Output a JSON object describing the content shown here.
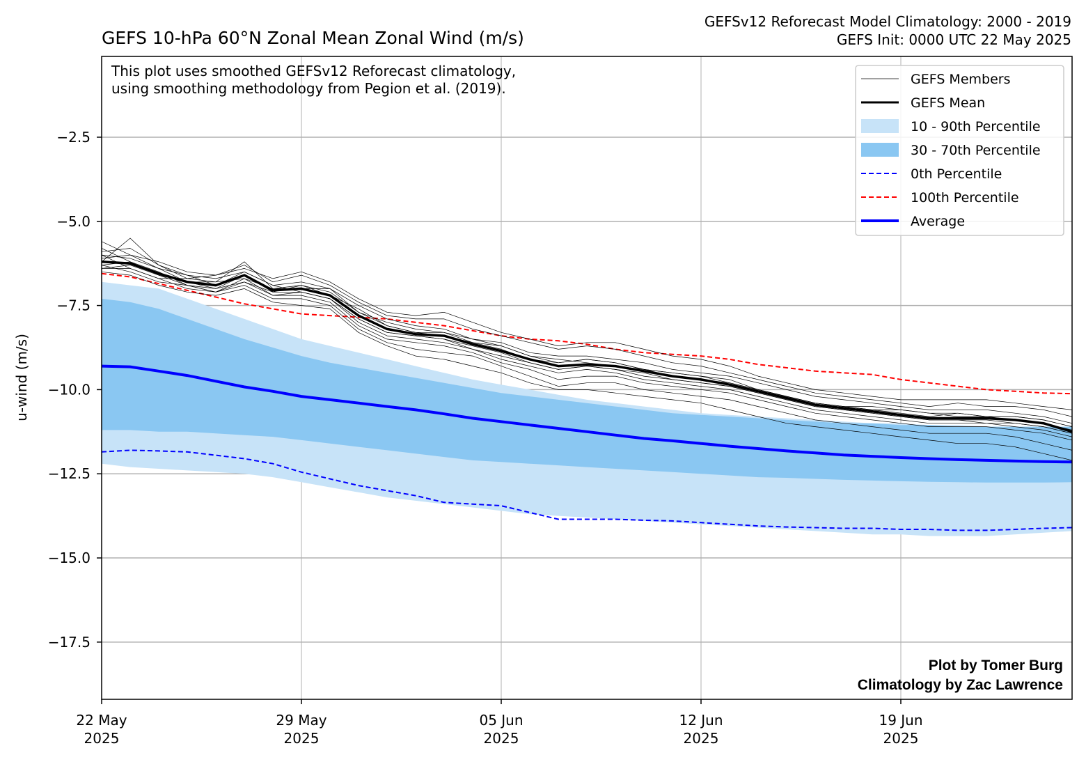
{
  "chart_data": {
    "type": "line",
    "title": "GEFS 10-hPa 60°N Zonal Mean Zonal Wind (m/s)",
    "subtitle_lines": [
      "GEFSv12 Reforecast Model Climatology: 2000 - 2019",
      "GEFS Init: 0000 UTC 22 May 2025"
    ],
    "note_lines": [
      "This plot uses smoothed GEFSv12 Reforecast climatology,",
      "using smoothing methodology from Pegion et al. (2019)."
    ],
    "credit_lines": [
      "Plot by Tomer Burg",
      "Climatology by Zac Lawrence"
    ],
    "xlabel": "",
    "ylabel": "u-wind (m/s)",
    "xlim": [
      0,
      34
    ],
    "ylim": [
      -19.2,
      -0.1
    ],
    "x_unit": "days after 22 May 2025 00 UTC",
    "x_ticks": [
      {
        "x": 0,
        "label_line1": "22 May",
        "label_line2": "2025"
      },
      {
        "x": 7,
        "label_line1": "29 May",
        "label_line2": "2025"
      },
      {
        "x": 14,
        "label_line1": "05 Jun",
        "label_line2": "2025"
      },
      {
        "x": 21,
        "label_line1": "12 Jun",
        "label_line2": "2025"
      },
      {
        "x": 28,
        "label_line1": "19 Jun",
        "label_line2": "2025"
      }
    ],
    "y_ticks": [
      {
        "y": -2.5,
        "label": "−2.5"
      },
      {
        "y": -5.0,
        "label": "−5.0"
      },
      {
        "y": -7.5,
        "label": "−7.5"
      },
      {
        "y": -10.0,
        "label": "−10.0"
      },
      {
        "y": -12.5,
        "label": "−12.5"
      },
      {
        "y": -15.0,
        "label": "−15.0"
      },
      {
        "y": -17.5,
        "label": "−17.5"
      }
    ],
    "grid": true,
    "legend_position": "top-right",
    "legend": [
      {
        "label": "GEFS Members",
        "kind": "line",
        "color": "#000000",
        "width": 0.8
      },
      {
        "label": "GEFS Mean",
        "kind": "line",
        "color": "#000000",
        "width": 3
      },
      {
        "label": "10 - 90th Percentile",
        "kind": "patch",
        "color": "#c7e3f8"
      },
      {
        "label": "30 - 70th Percentile",
        "kind": "patch",
        "color": "#8ac7f2"
      },
      {
        "label": "0th Percentile",
        "kind": "dashed",
        "color": "#0000ff",
        "width": 2
      },
      {
        "label": "100th Percentile",
        "kind": "dashed",
        "color": "#ff0000",
        "width": 2
      },
      {
        "label": "Average",
        "kind": "line",
        "color": "#0000ff",
        "width": 4
      }
    ],
    "colors": {
      "band_10_90": "#c7e3f8",
      "band_30_70": "#8ac7f2",
      "average": "#0000ff",
      "p0": "#0000ff",
      "p100": "#ff0000",
      "members": "#000000",
      "mean": "#000000"
    },
    "x": [
      0,
      1,
      2,
      3,
      4,
      5,
      6,
      7,
      8,
      9,
      10,
      11,
      12,
      13,
      14,
      15,
      16,
      17,
      18,
      19,
      20,
      21,
      22,
      23,
      24,
      25,
      26,
      27,
      28,
      29,
      30,
      31,
      32,
      33,
      34
    ],
    "series": [
      {
        "name": "10 - 90th Percentile",
        "role": "band_outer",
        "upper": [
          -6.8,
          -6.9,
          -7.0,
          -7.3,
          -7.6,
          -7.9,
          -8.2,
          -8.5,
          -8.7,
          -8.9,
          -9.1,
          -9.3,
          -9.5,
          -9.7,
          -9.85,
          -10.0,
          -10.15,
          -10.3,
          -10.4,
          -10.5,
          -10.6,
          -10.7,
          -10.75,
          -10.8,
          -10.85,
          -10.9,
          -10.95,
          -11.0,
          -11.0,
          -11.05,
          -11.05,
          -11.1,
          -11.1,
          -11.1,
          -11.1
        ],
        "lower": [
          -12.2,
          -12.3,
          -12.35,
          -12.4,
          -12.45,
          -12.5,
          -12.6,
          -12.75,
          -12.9,
          -13.05,
          -13.2,
          -13.3,
          -13.4,
          -13.5,
          -13.6,
          -13.7,
          -13.75,
          -13.8,
          -13.85,
          -13.9,
          -13.95,
          -14.0,
          -14.05,
          -14.1,
          -14.15,
          -14.2,
          -14.25,
          -14.3,
          -14.3,
          -14.35,
          -14.35,
          -14.35,
          -14.3,
          -14.25,
          -14.2
        ]
      },
      {
        "name": "30 - 70th Percentile",
        "role": "band_inner",
        "upper": [
          -7.3,
          -7.4,
          -7.6,
          -7.9,
          -8.2,
          -8.5,
          -8.75,
          -9.0,
          -9.2,
          -9.35,
          -9.5,
          -9.65,
          -9.8,
          -9.95,
          -10.1,
          -10.2,
          -10.3,
          -10.4,
          -10.5,
          -10.6,
          -10.7,
          -10.75,
          -10.8,
          -10.85,
          -10.9,
          -10.95,
          -11.0,
          -11.0,
          -11.05,
          -11.05,
          -11.1,
          -11.1,
          -11.1,
          -11.1,
          -11.1
        ],
        "lower": [
          -11.2,
          -11.2,
          -11.25,
          -11.25,
          -11.3,
          -11.35,
          -11.4,
          -11.5,
          -11.6,
          -11.7,
          -11.8,
          -11.9,
          -12.0,
          -12.1,
          -12.15,
          -12.2,
          -12.25,
          -12.3,
          -12.35,
          -12.4,
          -12.45,
          -12.5,
          -12.55,
          -12.6,
          -12.62,
          -12.65,
          -12.68,
          -12.7,
          -12.72,
          -12.74,
          -12.75,
          -12.76,
          -12.76,
          -12.76,
          -12.75
        ]
      },
      {
        "name": "0th Percentile",
        "role": "p0",
        "values": [
          -11.85,
          -11.8,
          -11.82,
          -11.85,
          -11.95,
          -12.05,
          -12.2,
          -12.45,
          -12.65,
          -12.85,
          -13.0,
          -13.15,
          -13.35,
          -13.4,
          -13.45,
          -13.65,
          -13.85,
          -13.85,
          -13.85,
          -13.88,
          -13.9,
          -13.95,
          -14.0,
          -14.05,
          -14.08,
          -14.1,
          -14.12,
          -14.12,
          -14.15,
          -14.15,
          -14.18,
          -14.18,
          -14.15,
          -14.12,
          -14.1
        ]
      },
      {
        "name": "100th Percentile",
        "role": "p100",
        "values": [
          -6.55,
          -6.65,
          -6.85,
          -7.05,
          -7.25,
          -7.45,
          -7.6,
          -7.75,
          -7.8,
          -7.85,
          -7.9,
          -8.0,
          -8.1,
          -8.25,
          -8.4,
          -8.5,
          -8.55,
          -8.65,
          -8.8,
          -8.9,
          -8.95,
          -9.0,
          -9.1,
          -9.25,
          -9.35,
          -9.45,
          -9.5,
          -9.55,
          -9.7,
          -9.8,
          -9.9,
          -10.0,
          -10.05,
          -10.1,
          -10.12
        ]
      },
      {
        "name": "Average",
        "role": "average",
        "values": [
          -9.3,
          -9.32,
          -9.45,
          -9.58,
          -9.75,
          -9.92,
          -10.05,
          -10.2,
          -10.3,
          -10.4,
          -10.5,
          -10.6,
          -10.72,
          -10.85,
          -10.95,
          -11.05,
          -11.15,
          -11.25,
          -11.35,
          -11.45,
          -11.52,
          -11.6,
          -11.68,
          -11.75,
          -11.82,
          -11.88,
          -11.94,
          -11.98,
          -12.02,
          -12.05,
          -12.08,
          -12.1,
          -12.12,
          -12.14,
          -12.15
        ]
      },
      {
        "name": "GEFS Mean",
        "role": "mean",
        "values": [
          -6.2,
          -6.25,
          -6.55,
          -6.8,
          -6.9,
          -6.6,
          -7.05,
          -7.0,
          -7.2,
          -7.8,
          -8.2,
          -8.35,
          -8.4,
          -8.65,
          -8.85,
          -9.1,
          -9.3,
          -9.25,
          -9.3,
          -9.45,
          -9.6,
          -9.7,
          -9.85,
          -10.05,
          -10.25,
          -10.45,
          -10.55,
          -10.65,
          -10.75,
          -10.85,
          -10.85,
          -10.85,
          -10.9,
          -11.0,
          -11.25
        ]
      }
    ],
    "members": [
      {
        "values": [
          -6.0,
          -6.1,
          -6.4,
          -6.6,
          -6.7,
          -6.5,
          -6.9,
          -6.8,
          -7.0,
          -7.5,
          -7.9,
          -8.1,
          -8.2,
          -8.5,
          -8.6,
          -8.9,
          -9.0,
          -9.0,
          -9.1,
          -9.2,
          -9.4,
          -9.5,
          -9.6,
          -9.8,
          -10.0,
          -10.2,
          -10.3,
          -10.4,
          -10.5,
          -10.6,
          -10.6,
          -10.6,
          -10.7,
          -10.8,
          -11.0
        ]
      },
      {
        "values": [
          -6.4,
          -6.4,
          -6.7,
          -7.0,
          -7.1,
          -6.8,
          -7.2,
          -7.2,
          -7.4,
          -8.1,
          -8.5,
          -8.6,
          -8.7,
          -8.9,
          -9.2,
          -9.4,
          -9.7,
          -9.6,
          -9.6,
          -9.8,
          -9.9,
          -10.0,
          -10.1,
          -10.3,
          -10.5,
          -10.7,
          -10.8,
          -10.9,
          -11.0,
          -11.1,
          -11.1,
          -11.1,
          -11.2,
          -11.3,
          -11.5
        ]
      },
      {
        "values": [
          -5.9,
          -5.8,
          -6.3,
          -6.7,
          -6.6,
          -6.3,
          -6.8,
          -6.6,
          -6.9,
          -7.4,
          -7.8,
          -7.9,
          -7.9,
          -8.2,
          -8.4,
          -8.6,
          -8.8,
          -8.7,
          -8.8,
          -9.0,
          -9.2,
          -9.3,
          -9.5,
          -9.7,
          -9.9,
          -10.1,
          -10.2,
          -10.3,
          -10.4,
          -10.5,
          -10.4,
          -10.5,
          -10.5,
          -10.6,
          -10.8
        ]
      },
      {
        "values": [
          -6.3,
          -6.5,
          -6.8,
          -6.9,
          -7.1,
          -6.9,
          -7.3,
          -7.3,
          -7.5,
          -8.2,
          -8.6,
          -8.8,
          -8.9,
          -9.0,
          -9.3,
          -9.6,
          -9.9,
          -9.8,
          -9.8,
          -10.0,
          -10.1,
          -10.2,
          -10.3,
          -10.5,
          -10.7,
          -10.9,
          -11.0,
          -11.1,
          -11.2,
          -11.3,
          -11.3,
          -11.3,
          -11.4,
          -11.6,
          -11.8
        ]
      },
      {
        "values": [
          -5.6,
          -6.0,
          -6.2,
          -6.5,
          -6.6,
          -6.4,
          -6.7,
          -6.5,
          -6.8,
          -7.3,
          -7.7,
          -7.8,
          -7.7,
          -8.0,
          -8.3,
          -8.5,
          -8.7,
          -8.6,
          -8.6,
          -8.8,
          -9.0,
          -9.1,
          -9.3,
          -9.6,
          -9.8,
          -10.0,
          -10.1,
          -10.2,
          -10.3,
          -10.3,
          -10.3,
          -10.3,
          -10.4,
          -10.5,
          -10.6
        ]
      },
      {
        "values": [
          -6.5,
          -6.6,
          -6.9,
          -7.1,
          -7.2,
          -7.0,
          -7.4,
          -7.5,
          -7.6,
          -8.3,
          -8.7,
          -9.0,
          -9.1,
          -9.3,
          -9.5,
          -9.8,
          -10.0,
          -10.0,
          -10.1,
          -10.2,
          -10.3,
          -10.4,
          -10.6,
          -10.8,
          -11.0,
          -11.1,
          -11.2,
          -11.3,
          -11.4,
          -11.5,
          -11.6,
          -11.6,
          -11.7,
          -11.9,
          -12.1
        ]
      },
      {
        "values": [
          -6.1,
          -6.0,
          -6.4,
          -6.8,
          -6.8,
          -6.7,
          -7.0,
          -6.9,
          -7.1,
          -7.7,
          -8.0,
          -8.2,
          -8.3,
          -8.6,
          -8.7,
          -9.0,
          -9.1,
          -9.2,
          -9.3,
          -9.4,
          -9.5,
          -9.6,
          -9.7,
          -10.0,
          -10.2,
          -10.4,
          -10.5,
          -10.6,
          -10.6,
          -10.7,
          -10.8,
          -10.8,
          -10.8,
          -10.9,
          -11.1
        ]
      },
      {
        "values": [
          -6.2,
          -5.5,
          -6.3,
          -6.6,
          -6.9,
          -6.5,
          -6.9,
          -7.1,
          -7.3,
          -7.9,
          -8.3,
          -8.4,
          -8.5,
          -8.8,
          -9.0,
          -9.2,
          -9.4,
          -9.3,
          -9.4,
          -9.5,
          -9.7,
          -9.8,
          -9.9,
          -10.1,
          -10.3,
          -10.5,
          -10.6,
          -10.7,
          -10.8,
          -10.9,
          -10.9,
          -10.9,
          -11.0,
          -11.1,
          -11.3
        ]
      },
      {
        "values": [
          -5.8,
          -6.2,
          -6.6,
          -6.9,
          -7.0,
          -6.6,
          -7.1,
          -6.9,
          -7.2,
          -7.6,
          -8.1,
          -8.3,
          -8.4,
          -8.6,
          -8.8,
          -9.1,
          -9.2,
          -9.1,
          -9.2,
          -9.4,
          -9.6,
          -9.7,
          -9.8,
          -10.0,
          -10.2,
          -10.4,
          -10.5,
          -10.5,
          -10.6,
          -10.7,
          -10.7,
          -10.8,
          -10.8,
          -10.9,
          -11.1
        ]
      },
      {
        "values": [
          -6.4,
          -6.3,
          -6.6,
          -6.8,
          -7.0,
          -6.8,
          -7.1,
          -7.1,
          -7.3,
          -8.0,
          -8.4,
          -8.5,
          -8.6,
          -8.8,
          -9.1,
          -9.3,
          -9.5,
          -9.4,
          -9.5,
          -9.7,
          -9.8,
          -9.9,
          -10.0,
          -10.2,
          -10.4,
          -10.6,
          -10.7,
          -10.8,
          -10.9,
          -11.0,
          -11.0,
          -11.0,
          -11.1,
          -11.2,
          -11.4
        ]
      },
      {
        "values": [
          -6.0,
          -6.4,
          -6.7,
          -6.7,
          -6.8,
          -6.2,
          -7.0,
          -7.0,
          -7.0,
          -7.7,
          -8.1,
          -8.3,
          -8.3,
          -8.5,
          -8.7,
          -9.0,
          -9.2,
          -9.1,
          -9.2,
          -9.4,
          -9.5,
          -9.6,
          -9.8,
          -10.0,
          -10.2,
          -10.4,
          -10.5,
          -10.6,
          -10.7,
          -10.8,
          -10.7,
          -10.8,
          -10.9,
          -11.0,
          -11.2
        ]
      },
      {
        "values": [
          -6.3,
          -6.2,
          -6.5,
          -6.9,
          -7.1,
          -6.7,
          -7.2,
          -7.1,
          -7.3,
          -7.9,
          -8.3,
          -8.4,
          -8.5,
          -8.7,
          -8.9,
          -9.2,
          -9.4,
          -9.3,
          -9.4,
          -9.6,
          -9.7,
          -9.8,
          -9.9,
          -10.1,
          -10.3,
          -10.5,
          -10.6,
          -10.7,
          -10.8,
          -10.9,
          -10.9,
          -11.0,
          -11.0,
          -11.1,
          -11.3
        ]
      }
    ]
  }
}
